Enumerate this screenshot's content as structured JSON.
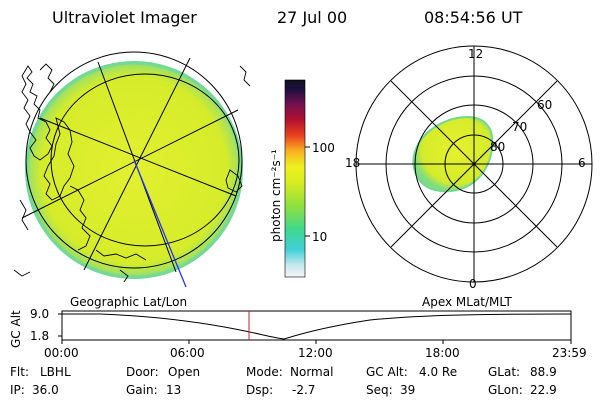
{
  "header": {
    "instrument": "Ultraviolet Imager",
    "date": "27 Jul 00",
    "time": "08:54:56 UT"
  },
  "colorbar": {
    "unit_label": "photon cm⁻²s⁻¹",
    "ticks": [
      "100",
      "10"
    ]
  },
  "polar_plot": {
    "mlt_labels": [
      "12",
      "18",
      "6",
      "0"
    ],
    "mlat_labels": [
      "60",
      "70",
      "80"
    ]
  },
  "panel_titles": {
    "left": "Geographic Lat/Lon",
    "right": "Apex MLat/MLT"
  },
  "altitude_plot": {
    "ylabel": "GC Alt",
    "yticks": [
      "9.0",
      "1.8"
    ],
    "xticks": [
      "00:00",
      "06:00",
      "12:00",
      "18:00",
      "23:59"
    ]
  },
  "info_rows": [
    [
      {
        "label": "Flt:",
        "value": "LBHL"
      },
      {
        "label": "Door:",
        "value": "Open"
      },
      {
        "label": "Mode:",
        "value": "Normal"
      },
      {
        "label": "GC Alt:",
        "value": "4.0 Re"
      },
      {
        "label": "GLat:",
        "value": "88.9"
      }
    ],
    [
      {
        "label": "IP:",
        "value": "36.0"
      },
      {
        "label": "Gain:",
        "value": "13"
      },
      {
        "label": "Dsp:",
        "value": "-2.7"
      },
      {
        "label": "Seq:",
        "value": "39"
      },
      {
        "label": "GLon:",
        "value": "22.9"
      }
    ]
  ],
  "colors": {
    "aurora_main": "#d8ec2a",
    "aurora_edge": "#7fe07a",
    "marker": "#cc2222"
  }
}
